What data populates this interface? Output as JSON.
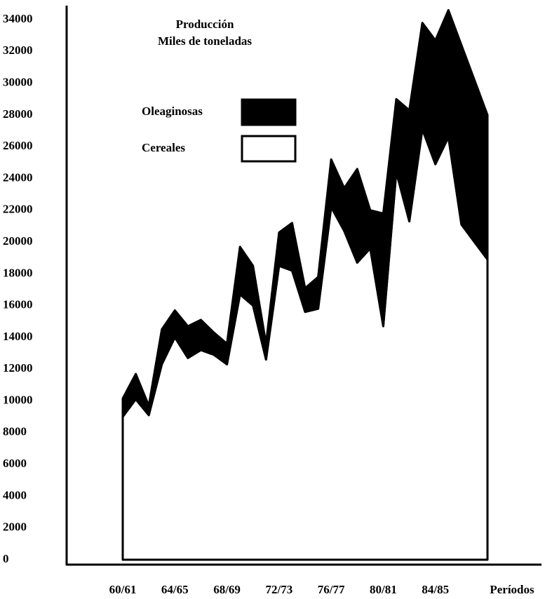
{
  "chart_data": {
    "type": "stacked_area",
    "title": [
      "Producción",
      "Miles de toneladas"
    ],
    "x_label": "Períodos",
    "categories": [
      "60/61",
      null,
      null,
      null,
      "64/65",
      null,
      null,
      null,
      "68/69",
      null,
      null,
      null,
      "72/73",
      null,
      null,
      null,
      "76/77",
      null,
      null,
      null,
      "80/81",
      null,
      null,
      null,
      "84/85",
      null,
      null,
      null,
      null
    ],
    "series": [
      {
        "name": "Cereales",
        "color": "#ffffff",
        "values": [
          9000,
          10100,
          9100,
          12300,
          14000,
          12700,
          13200,
          12900,
          12300,
          16700,
          16000,
          12600,
          18500,
          18200,
          15600,
          15800,
          22200,
          20700,
          18700,
          19600,
          14700,
          24400,
          21300,
          27100,
          24900,
          26600,
          21100,
          20000,
          18900
        ]
      },
      {
        "name": "Oleaginosas",
        "color": "#000000",
        "values": [
          1150,
          1600,
          600,
          2200,
          1700,
          2000,
          1900,
          1400,
          1300,
          3000,
          2500,
          1000,
          2100,
          3000,
          1500,
          2000,
          3000,
          2700,
          5900,
          2400,
          7100,
          4600,
          7000,
          6700,
          7800,
          8000,
          11300,
          10200,
          9100
        ]
      }
    ],
    "ylim": [
      0,
      34000
    ],
    "yticks": [
      0,
      2000,
      4000,
      6000,
      8000,
      10000,
      12000,
      14000,
      16000,
      18000,
      20000,
      22000,
      24000,
      26000,
      28000,
      30000,
      32000,
      34000
    ]
  }
}
